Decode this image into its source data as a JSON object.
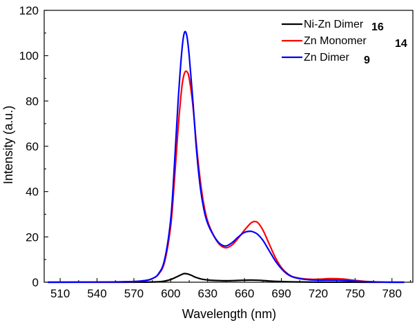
{
  "chart_data": {
    "type": "line",
    "title": "",
    "xlabel": "Wavelength (nm)",
    "ylabel": "Intensity (a.u.)",
    "xlim": [
      497,
      797
    ],
    "ylim": [
      0,
      120
    ],
    "xticks": [
      510,
      540,
      570,
      600,
      630,
      660,
      690,
      720,
      750,
      780
    ],
    "yticks": [
      0,
      20,
      40,
      60,
      80,
      100,
      120
    ],
    "grid": false,
    "legend_position": "top-right",
    "series": [
      {
        "name": "Ni-Zn Dimer",
        "number": "16",
        "color": "#000000",
        "x": [
          500,
          560,
          580,
          590,
          595,
          600,
          605,
          608,
          611,
          614,
          617,
          620,
          625,
          630,
          635,
          640,
          645,
          650,
          655,
          660,
          665,
          670,
          675,
          680,
          690,
          700,
          720,
          740,
          760,
          790
        ],
        "y": [
          0,
          0,
          0.05,
          0.2,
          0.5,
          1.2,
          2.4,
          3.2,
          3.8,
          3.6,
          3.0,
          2.2,
          1.4,
          1.0,
          0.8,
          0.7,
          0.65,
          0.7,
          0.8,
          0.9,
          0.95,
          0.9,
          0.75,
          0.55,
          0.3,
          0.15,
          0.05,
          0.02,
          0,
          0
        ]
      },
      {
        "name": "Zn Monomer",
        "number": "14",
        "color": "#ff0000",
        "x": [
          500,
          550,
          570,
          580,
          585,
          590,
          595,
          600,
          603,
          606,
          609,
          611,
          613,
          615,
          618,
          621,
          624,
          627,
          630,
          635,
          640,
          645,
          650,
          655,
          660,
          665,
          668,
          671,
          675,
          680,
          685,
          690,
          695,
          700,
          710,
          720,
          730,
          740,
          750,
          760,
          770,
          780,
          790
        ],
        "y": [
          0,
          0.1,
          0.3,
          0.8,
          1.6,
          3.5,
          9,
          25,
          45,
          68,
          86,
          92,
          93,
          90,
          78,
          60,
          45,
          34,
          27,
          20.5,
          16.5,
          15.2,
          16.5,
          19.5,
          23,
          26,
          26.8,
          26.2,
          23,
          17,
          11,
          6.5,
          3.8,
          2.3,
          1.4,
          1.3,
          1.6,
          1.4,
          0.8,
          0.3,
          0.1,
          0,
          0
        ]
      },
      {
        "name": "Zn Dimer",
        "number": "9",
        "color": "#0000ff",
        "x": [
          500,
          550,
          570,
          580,
          585,
          590,
          595,
          600,
          603,
          606,
          609,
          611,
          613,
          615,
          618,
          621,
          624,
          627,
          630,
          635,
          640,
          645,
          650,
          655,
          660,
          665,
          668,
          671,
          675,
          680,
          685,
          690,
          695,
          700,
          710,
          720,
          730,
          740,
          750,
          760,
          770,
          780,
          790
        ],
        "y": [
          0,
          0.1,
          0.3,
          0.8,
          1.6,
          3.7,
          10,
          28,
          52,
          80,
          102,
          110,
          109,
          100,
          80,
          58,
          42,
          32,
          26,
          20.5,
          17,
          16,
          17.5,
          20,
          22,
          22.5,
          22,
          21,
          18.5,
          14,
          9.5,
          6,
          3.5,
          2.2,
          1.2,
          0.9,
          0.9,
          0.8,
          0.5,
          0.2,
          0.1,
          0,
          0
        ]
      }
    ]
  }
}
